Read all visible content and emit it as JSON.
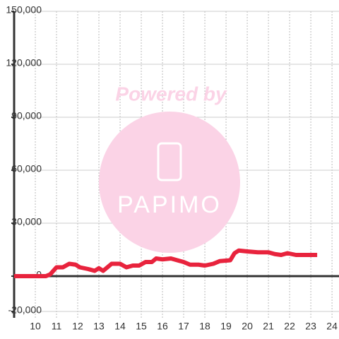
{
  "chart_data": {
    "type": "line",
    "x": [
      9,
      10,
      10.5,
      10.7,
      11,
      11.3,
      11.6,
      11.9,
      12.1,
      12.5,
      12.8,
      13,
      13.2,
      13.6,
      14,
      14.3,
      14.6,
      14.9,
      15.2,
      15.5,
      15.7,
      16,
      16.4,
      16.7,
      17,
      17.3,
      17.7,
      18,
      18.4,
      18.7,
      19.2,
      19.4,
      19.6,
      20,
      20.5,
      21,
      21.3,
      21.6,
      21.9,
      22.3,
      22.7,
      23.3
    ],
    "series": [
      {
        "color": "#e8233d",
        "values": [
          0,
          0,
          0,
          1000,
          5000,
          5000,
          7000,
          6500,
          5000,
          4000,
          3000,
          4500,
          3000,
          7000,
          7000,
          5000,
          6000,
          6000,
          8000,
          8000,
          10000,
          9500,
          10000,
          9000,
          8000,
          6500,
          6500,
          6000,
          7000,
          8500,
          9000,
          13000,
          14500,
          14000,
          13500,
          13500,
          12500,
          12000,
          13000,
          12000,
          12000,
          12000
        ]
      }
    ],
    "xlim": [
      9,
      24.33
    ],
    "xticks": [
      10,
      11,
      12,
      13,
      14,
      15,
      16,
      17,
      18,
      19,
      20,
      21,
      22,
      23,
      24
    ],
    "ylim": [
      -23600,
      150000
    ],
    "yticks": [
      {
        "value": -20000,
        "label": "-20,000"
      },
      0,
      {
        "value": 30000,
        "label": "30,000"
      },
      {
        "value": 60000,
        "label": "60,000"
      },
      {
        "value": 90000,
        "label": "90,000"
      },
      {
        "value": 120000,
        "label": "120,000"
      },
      {
        "value": 150000,
        "label": "150,000"
      }
    ],
    "grid": true,
    "watermark": {
      "line1": "Powered by",
      "line2": "PAPIMO"
    }
  }
}
